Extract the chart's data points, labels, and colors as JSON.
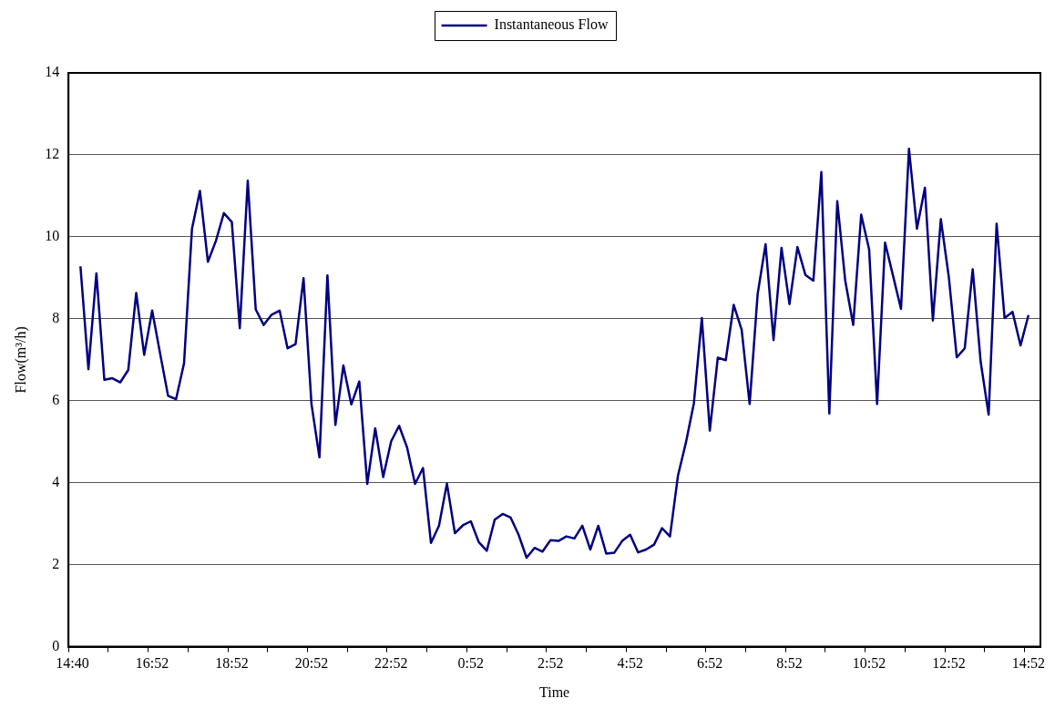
{
  "chart_data": {
    "type": "line",
    "xlabel": "Time",
    "ylabel": "Flow(m³/h)",
    "categories": [
      "14:40",
      null,
      null,
      null,
      null,
      null,
      null,
      null,
      null,
      null,
      "16:52",
      null,
      null,
      null,
      null,
      null,
      null,
      null,
      null,
      null,
      "18:52",
      null,
      null,
      null,
      null,
      null,
      null,
      null,
      null,
      null,
      "20:52",
      null,
      null,
      null,
      null,
      null,
      null,
      null,
      null,
      null,
      "22:52",
      null,
      null,
      null,
      null,
      null,
      null,
      null,
      null,
      null,
      "0:52",
      null,
      null,
      null,
      null,
      null,
      null,
      null,
      null,
      null,
      "2:52",
      null,
      null,
      null,
      null,
      null,
      null,
      null,
      null,
      null,
      "4:52",
      null,
      null,
      null,
      null,
      null,
      null,
      null,
      null,
      null,
      "6:52",
      null,
      null,
      null,
      null,
      null,
      null,
      null,
      null,
      null,
      "8:52",
      null,
      null,
      null,
      null,
      null,
      null,
      null,
      null,
      null,
      "10:52",
      null,
      null,
      null,
      null,
      null,
      null,
      null,
      null,
      null,
      "12:52",
      null,
      null,
      null,
      null,
      null,
      null,
      null,
      null,
      null,
      "14:52",
      null
    ],
    "series": [
      {
        "name": "Instantaneous Flow",
        "color": "#000080",
        "values": [
          null,
          9.28,
          6.77,
          9.11,
          6.51,
          6.55,
          6.45,
          6.75,
          8.63,
          7.12,
          8.2,
          7.15,
          6.12,
          6.04,
          6.91,
          10.2,
          11.12,
          9.39,
          9.9,
          10.58,
          10.36,
          7.77,
          11.37,
          8.23,
          7.85,
          8.1,
          8.2,
          7.28,
          7.38,
          8.99,
          5.92,
          4.62,
          9.06,
          5.41,
          6.86,
          5.91,
          6.47,
          3.97,
          5.33,
          4.14,
          5.01,
          5.39,
          4.86,
          3.97,
          4.36,
          2.53,
          2.95,
          3.98,
          2.77,
          2.96,
          3.06,
          2.55,
          2.34,
          3.1,
          3.24,
          3.15,
          2.73,
          2.17,
          2.41,
          2.32,
          2.6,
          2.58,
          2.69,
          2.64,
          2.95,
          2.37,
          2.95,
          2.27,
          2.29,
          2.58,
          2.73,
          2.3,
          2.37,
          2.49,
          2.89,
          2.69,
          4.17,
          4.98,
          5.94,
          8.02,
          5.27,
          7.05,
          6.99,
          8.34,
          7.73,
          5.92,
          8.6,
          9.82,
          7.48,
          9.73,
          8.36,
          9.75,
          9.07,
          8.93,
          11.58,
          5.69,
          10.87,
          8.93,
          7.85,
          10.54,
          9.69,
          5.92,
          9.86,
          9.05,
          8.24,
          12.15,
          10.2,
          11.2,
          7.96,
          10.43,
          9.02,
          7.06,
          7.28,
          9.21,
          6.95,
          5.66,
          10.32,
          8.02,
          8.17,
          7.35,
          8.09,
          null
        ]
      }
    ],
    "ylim": [
      0,
      14
    ],
    "yticks": [
      0,
      2,
      4,
      6,
      8,
      10,
      12,
      14
    ],
    "grid": "y",
    "legend": "top",
    "marker": "none",
    "line_style": "solid"
  }
}
